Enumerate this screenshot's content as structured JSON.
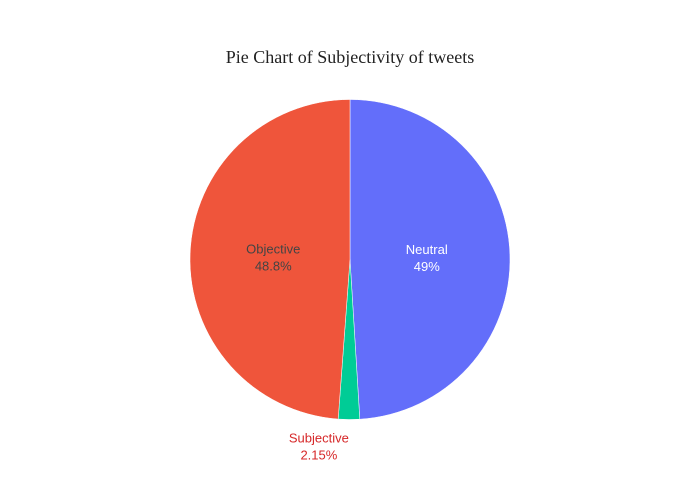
{
  "chart_data": {
    "type": "pie",
    "title": "Pie Chart of Subjectivity of tweets",
    "slices": [
      {
        "label": "Neutral",
        "percent_label": "49%",
        "value": 49.0,
        "color": "#636efa",
        "text_color": "#ffffff"
      },
      {
        "label": "Subjective",
        "percent_label": "2.15%",
        "value": 2.15,
        "color": "#00cc96",
        "text_color": "#d62728"
      },
      {
        "label": "Objective",
        "percent_label": "48.8%",
        "value": 48.8,
        "color": "#ef553b",
        "text_color": "#444444"
      }
    ],
    "direction": "clockwise",
    "start_angle": "top",
    "legend": "none"
  }
}
